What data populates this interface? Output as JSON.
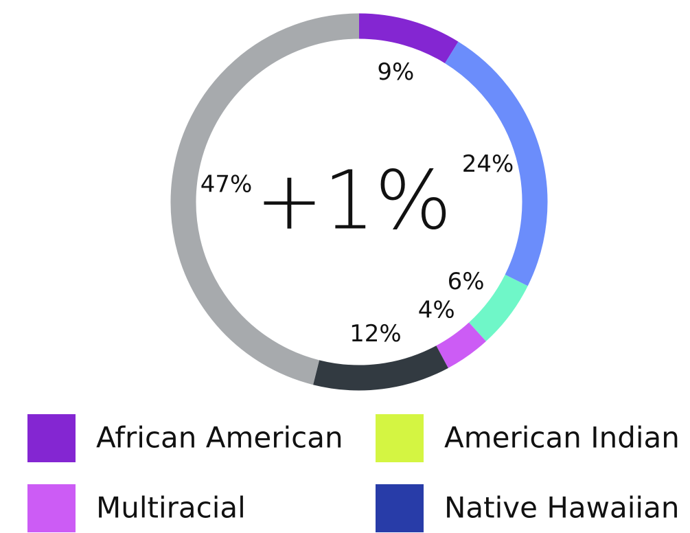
{
  "chart_data": {
    "type": "donut",
    "annotation": "+1%",
    "annotation_color": "#c75cf2",
    "categories": [
      "African American",
      null,
      null,
      "Multiracial",
      null,
      null
    ],
    "values": [
      9,
      24,
      6,
      4,
      12,
      47
    ],
    "value_labels": [
      "9%",
      "24%",
      "6%",
      "4%",
      "12%",
      "47%"
    ],
    "colors": [
      "#8426d2",
      "#6b8dfb",
      "#6ff7c8",
      "#cc5cf5",
      "#323a41",
      "#a7aaad"
    ],
    "legend": [
      {
        "name": "African American",
        "color": "#8426d2"
      },
      {
        "name": "American Indian",
        "color": "#d4f542"
      },
      {
        "name": "Multiracial",
        "color": "#cc5cf5"
      },
      {
        "name": "Native Hawaiian",
        "color": "#283ca8"
      }
    ]
  }
}
